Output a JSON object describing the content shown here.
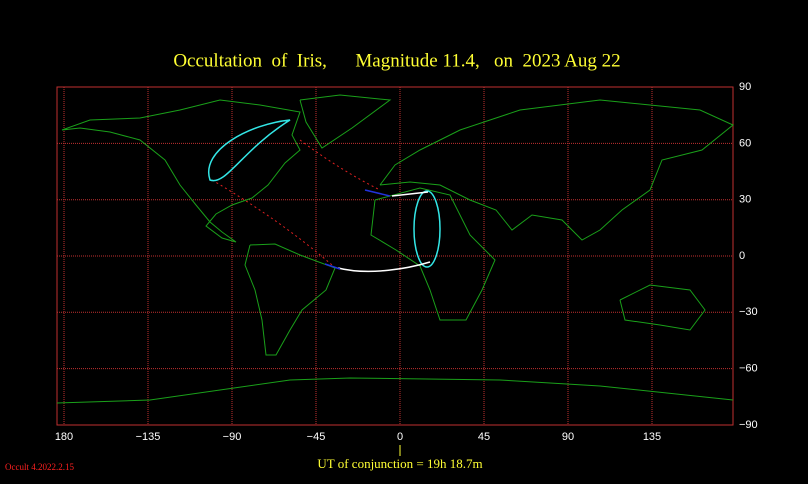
{
  "title": "Occultation  of  Iris,      Magnitude 11.4,   on  2023 Aug 22",
  "longitude_ticks": [
    {
      "value": -180,
      "label": "180"
    },
    {
      "value": -135,
      "label": "−135"
    },
    {
      "value": -90,
      "label": "−90"
    },
    {
      "value": -45,
      "label": "−45"
    },
    0,
    45,
    90,
    135
  ],
  "latitude_ticks": [
    90,
    60,
    30,
    0,
    {
      "value": -30,
      "label": "−30"
    },
    {
      "value": -60,
      "label": "−60"
    },
    {
      "value": -90,
      "label": "−90"
    }
  ],
  "conjunction": "UT of conjunction = 19h 18.7m",
  "version": "Occult 4.2022.2.15"
}
